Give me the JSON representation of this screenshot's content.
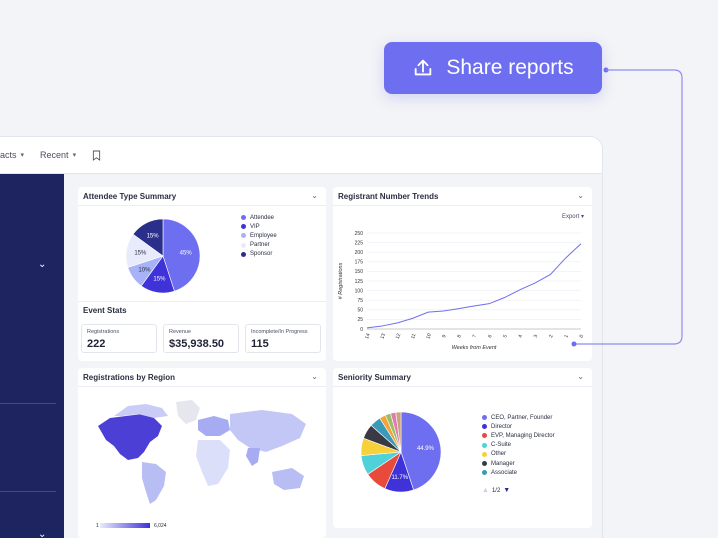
{
  "share": {
    "label": "Share reports",
    "icon": "upload-icon"
  },
  "topbar": {
    "contacts": "acts",
    "recent": "Recent"
  },
  "attendee": {
    "title": "Attendee Type Summary",
    "slices": [
      {
        "name": "Attendee",
        "pct": 45,
        "label": "45%",
        "color": "#6e6ff0"
      },
      {
        "name": "VIP",
        "pct": 15,
        "label": "15%",
        "color": "#3f32d8"
      },
      {
        "name": "Employee",
        "pct": 10,
        "label": "10%",
        "color": "#a8b2f7"
      },
      {
        "name": "Partner",
        "pct": 15,
        "label": "15%",
        "color": "#e8ebfb"
      },
      {
        "name": "Sponsor",
        "pct": 15,
        "label": "15%",
        "color": "#2a2f8c"
      }
    ]
  },
  "stats": {
    "title": "Event Stats",
    "items": [
      {
        "label": "Registrations",
        "value": "222"
      },
      {
        "label": "Revenue",
        "value": "$35,938.50"
      },
      {
        "label": "Incomplete/In Progress",
        "value": "115"
      }
    ]
  },
  "trends": {
    "title": "Registrant Number Trends",
    "export_label": "Export",
    "chart_data": {
      "type": "line",
      "x": [
        "14",
        "13",
        "12",
        "11",
        "10",
        "9",
        "8",
        "7",
        "6",
        "5",
        "4",
        "3",
        "2",
        "1",
        "0"
      ],
      "series": [
        {
          "values": [
            3,
            8,
            16,
            28,
            44,
            47,
            53,
            60,
            66,
            82,
            102,
            120,
            142,
            185,
            222
          ]
        }
      ],
      "xlabel": "Weeks from Event",
      "ylabel": "# Registrations",
      "yticks": [
        "0",
        "25",
        "50",
        "75",
        "100",
        "125",
        "150",
        "175",
        "200",
        "225",
        "250"
      ],
      "ylim": [
        0,
        250
      ],
      "color": "#6e6ff0"
    }
  },
  "region": {
    "title": "Registrations by Region",
    "scale_min": "1",
    "scale_max": "6,024"
  },
  "seniority": {
    "title": "Seniority Summary",
    "pct_large": "44.9%",
    "pct_small": "11.7%",
    "slices": [
      {
        "name": "CEO, Partner, Founder",
        "pct": 44.9,
        "color": "#6e6ff0"
      },
      {
        "name": "Director",
        "pct": 11.7,
        "color": "#3f32d8"
      },
      {
        "name": "EVP, Managing Director",
        "pct": 9,
        "color": "#e84a3c"
      },
      {
        "name": "C-Suite",
        "pct": 8,
        "color": "#4fd1d9"
      },
      {
        "name": "Other",
        "pct": 7,
        "color": "#f7d13a"
      },
      {
        "name": "Manager",
        "pct": 6,
        "color": "#3a3a44"
      },
      {
        "name": "Associate",
        "pct": 4.5,
        "color": "#3b9ab8"
      },
      {
        "name": "",
        "pct": 2.5,
        "color": "#f2a33a"
      },
      {
        "name": "",
        "pct": 2.2,
        "color": "#9bbd6a"
      },
      {
        "name": "",
        "pct": 2.1,
        "color": "#e07ab0"
      },
      {
        "name": "",
        "pct": 2.1,
        "color": "#c9a37a"
      }
    ],
    "pager": "1/2"
  }
}
